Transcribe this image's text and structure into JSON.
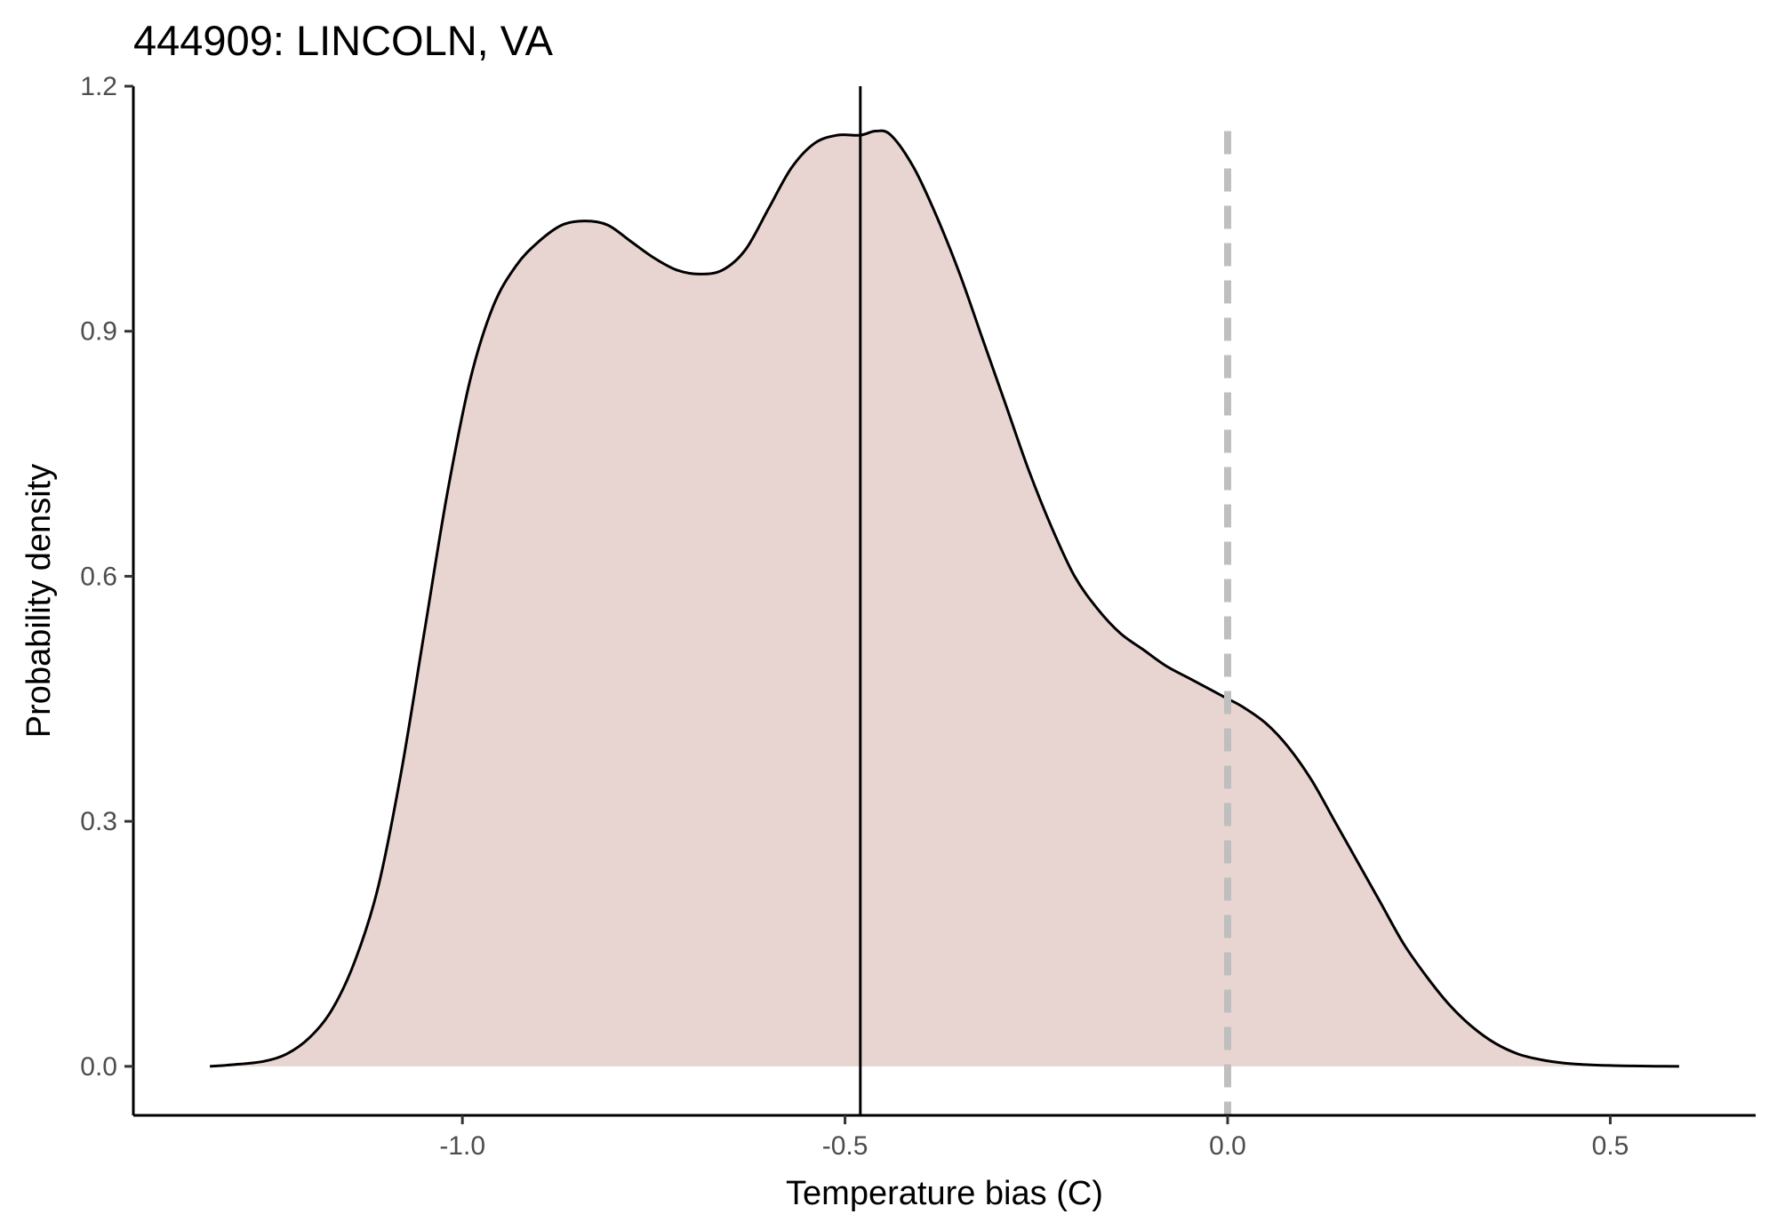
{
  "chart_data": {
    "type": "area",
    "title": "444909: LINCOLN, VA",
    "xlabel": "Temperature bias (C)",
    "ylabel": "Probability density",
    "xlim": [
      -1.43,
      0.69
    ],
    "ylim": [
      -0.06,
      1.2
    ],
    "x_ticks": [
      -1.0,
      -0.5,
      0.0,
      0.5
    ],
    "x_tick_labels": [
      "-1.0",
      "-0.5",
      "0.0",
      "0.5"
    ],
    "y_ticks": [
      0.0,
      0.3,
      0.6,
      0.9,
      1.2
    ],
    "y_tick_labels": [
      "0.0",
      "0.3",
      "0.6",
      "0.9",
      "1.2"
    ],
    "grid": false,
    "legend": "none",
    "colors": {
      "fill": "#e8d5d1",
      "line": "#000000",
      "reference": "#bfbfbf"
    },
    "series": [
      {
        "x": [
          -1.33,
          -1.3,
          -1.26,
          -1.23,
          -1.2,
          -1.17,
          -1.14,
          -1.11,
          -1.08,
          -1.05,
          -1.02,
          -0.99,
          -0.96,
          -0.93,
          -0.9,
          -0.87,
          -0.84,
          -0.81,
          -0.78,
          -0.75,
          -0.72,
          -0.69,
          -0.66,
          -0.63,
          -0.6,
          -0.57,
          -0.54,
          -0.51,
          -0.48,
          -0.46,
          -0.44,
          -0.41,
          -0.38,
          -0.35,
          -0.32,
          -0.29,
          -0.26,
          -0.23,
          -0.2,
          -0.17,
          -0.14,
          -0.11,
          -0.08,
          -0.05,
          -0.02,
          0.0,
          0.02,
          0.05,
          0.08,
          0.11,
          0.14,
          0.17,
          0.2,
          0.23,
          0.26,
          0.29,
          0.32,
          0.35,
          0.38,
          0.41,
          0.44,
          0.47,
          0.5,
          0.53,
          0.56,
          0.59
        ],
        "y": [
          0.0,
          0.002,
          0.006,
          0.015,
          0.035,
          0.07,
          0.13,
          0.22,
          0.36,
          0.53,
          0.7,
          0.84,
          0.93,
          0.98,
          1.01,
          1.03,
          1.035,
          1.03,
          1.01,
          0.99,
          0.975,
          0.97,
          0.975,
          1.0,
          1.05,
          1.1,
          1.13,
          1.14,
          1.14,
          1.145,
          1.14,
          1.1,
          1.04,
          0.97,
          0.89,
          0.81,
          0.73,
          0.66,
          0.6,
          0.56,
          0.53,
          0.51,
          0.49,
          0.475,
          0.46,
          0.45,
          0.44,
          0.42,
          0.39,
          0.35,
          0.3,
          0.25,
          0.2,
          0.15,
          0.11,
          0.075,
          0.048,
          0.028,
          0.015,
          0.008,
          0.004,
          0.002,
          0.001,
          0.0005,
          0.0002,
          0.0
        ]
      }
    ],
    "reference_lines": [
      {
        "orientation": "vertical",
        "x": -0.48,
        "style": "solid",
        "color": "#000000"
      },
      {
        "orientation": "vertical",
        "x": 0.0,
        "style": "dashed",
        "color": "#bfbfbf"
      }
    ]
  }
}
